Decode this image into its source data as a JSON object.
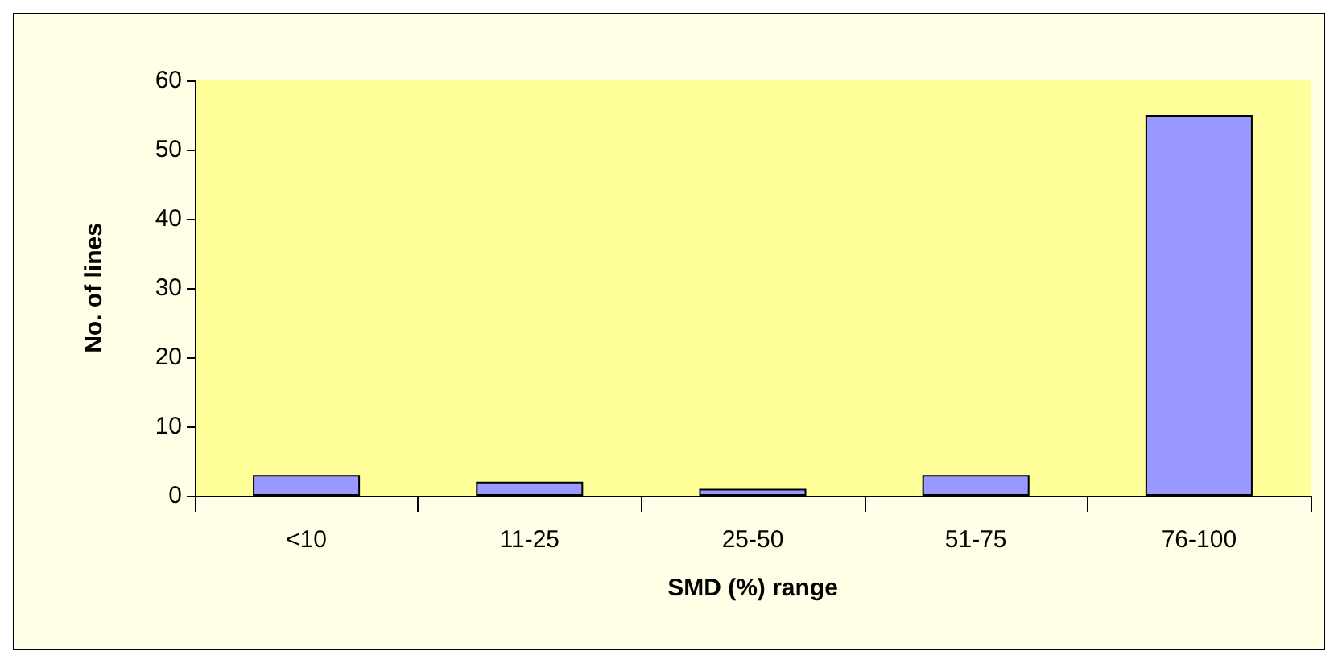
{
  "chart_data": {
    "type": "bar",
    "xlabel": "SMD (%) range",
    "ylabel": "No. of lines",
    "categories": [
      "<10",
      "11-25",
      "25-50",
      "51-75",
      "76-100"
    ],
    "values": [
      3,
      2,
      1,
      3,
      55
    ],
    "color": "#9999ff",
    "ylim": [
      0,
      60
    ],
    "yticks": [
      0,
      10,
      20,
      30,
      40,
      50,
      60
    ],
    "grid": false
  }
}
